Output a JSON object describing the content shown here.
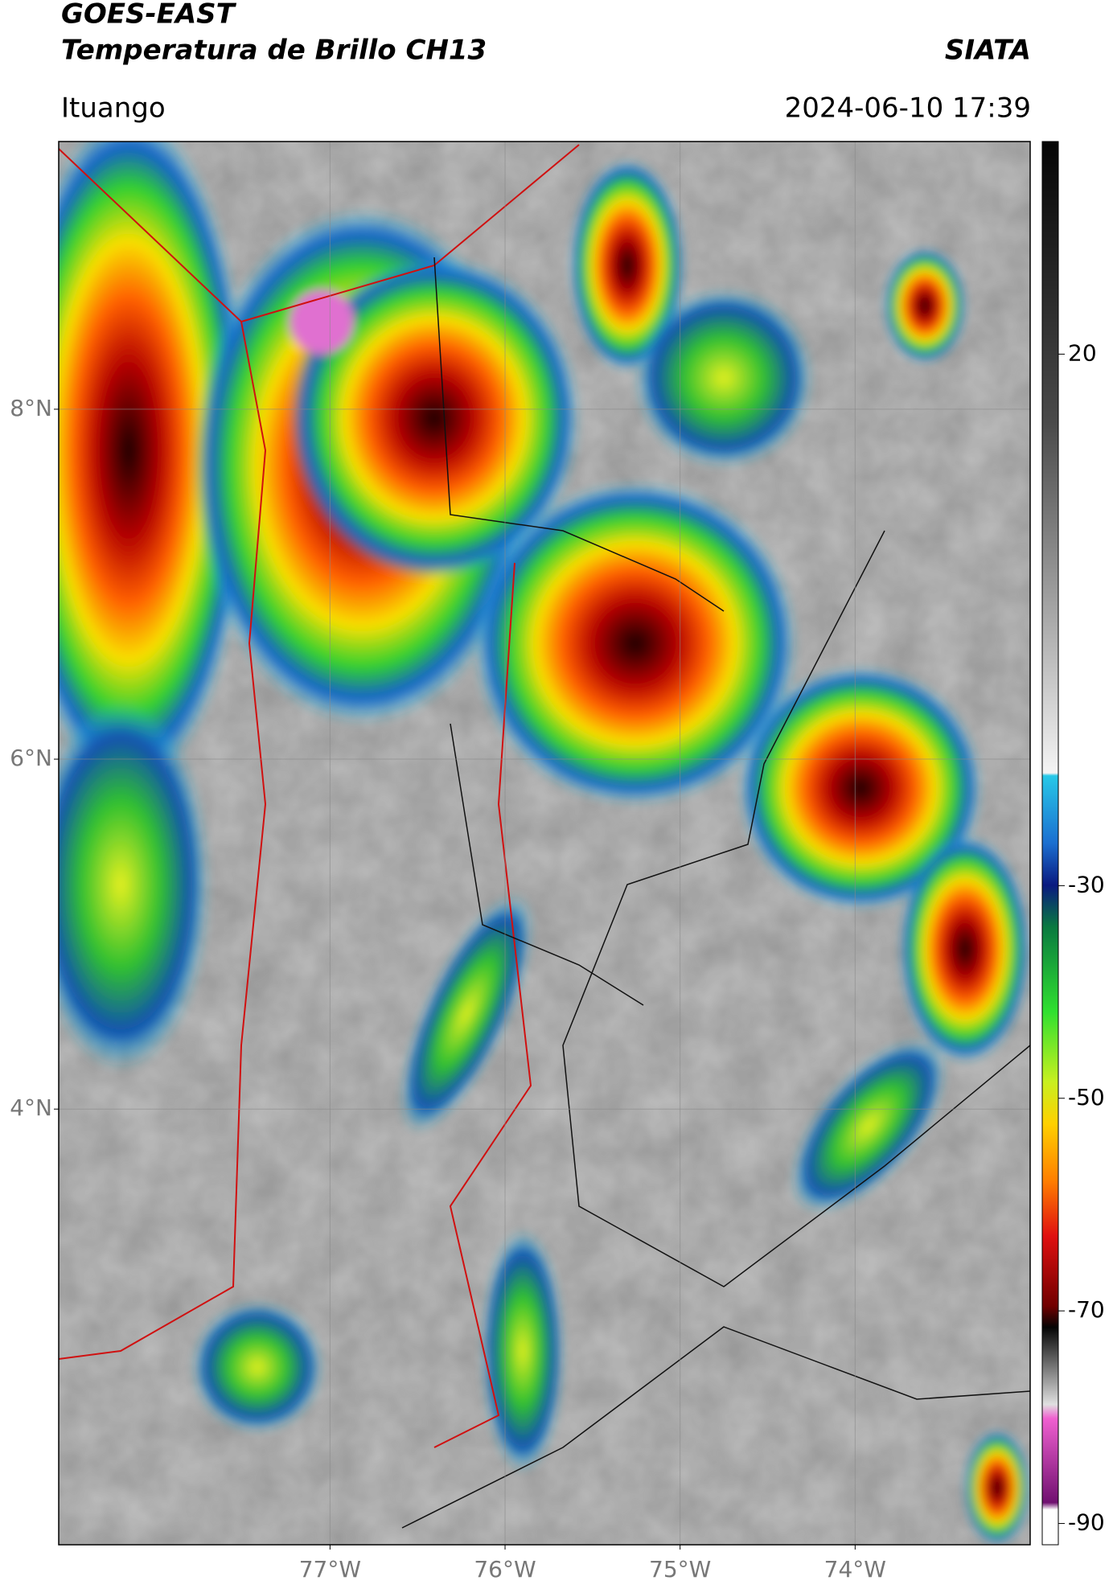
{
  "header": {
    "title_line1": "GOES-EAST",
    "title_line2": "Temperatura de Brillo CH13",
    "source": "SIATA",
    "location": "Ituango",
    "datetime": "2024-06-10 17:39"
  },
  "map": {
    "xlim": [
      -78.55,
      -73.0
    ],
    "ylim": [
      1.51,
      9.53
    ],
    "xticks": [
      {
        "value": -77,
        "label": "77°W"
      },
      {
        "value": -76,
        "label": "76°W"
      },
      {
        "value": -75,
        "label": "75°W"
      },
      {
        "value": -74,
        "label": "74°W"
      }
    ],
    "yticks": [
      {
        "value": 8,
        "label": "8°N"
      },
      {
        "value": 6,
        "label": "6°N"
      },
      {
        "value": 4,
        "label": "4°N"
      }
    ],
    "grid": true
  },
  "colorbar": {
    "clim": [
      -92,
      40
    ],
    "ticks": [
      20,
      -30,
      -50,
      -70,
      -90
    ]
  }
}
